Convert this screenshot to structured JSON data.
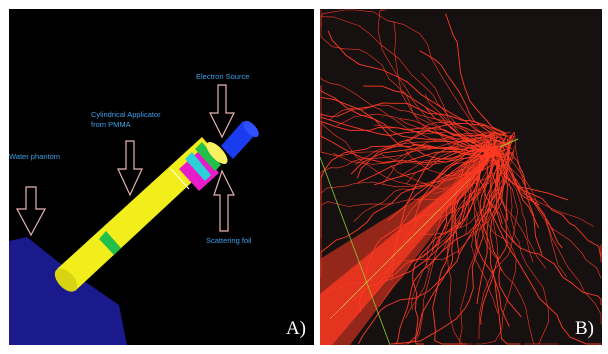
{
  "panel_a": {
    "label": "A)",
    "annotations": {
      "electron_source": "Electron Source",
      "applicator_line1": "Cylindrical Applicator",
      "applicator_line2": "from PMMA",
      "water_phantom": "Water phantom",
      "scattering_foil": "Scattering foil"
    },
    "colors": {
      "background": "#000000",
      "water_phantom": "#1a1a8c",
      "applicator": "#f2ee1c",
      "ring": "#22c04a",
      "magenta_section": "#e81cc8",
      "cyan_ring": "#2cd0d8",
      "source": "#1a3cf0",
      "annotation_text": "#3aa0e8",
      "arrow_outline": "#e8b4b4"
    }
  },
  "panel_b": {
    "label": "B)",
    "colors": {
      "background": "#161010",
      "tracks": "#ff3a22",
      "photon_tracks": "#8ccc2a"
    }
  }
}
